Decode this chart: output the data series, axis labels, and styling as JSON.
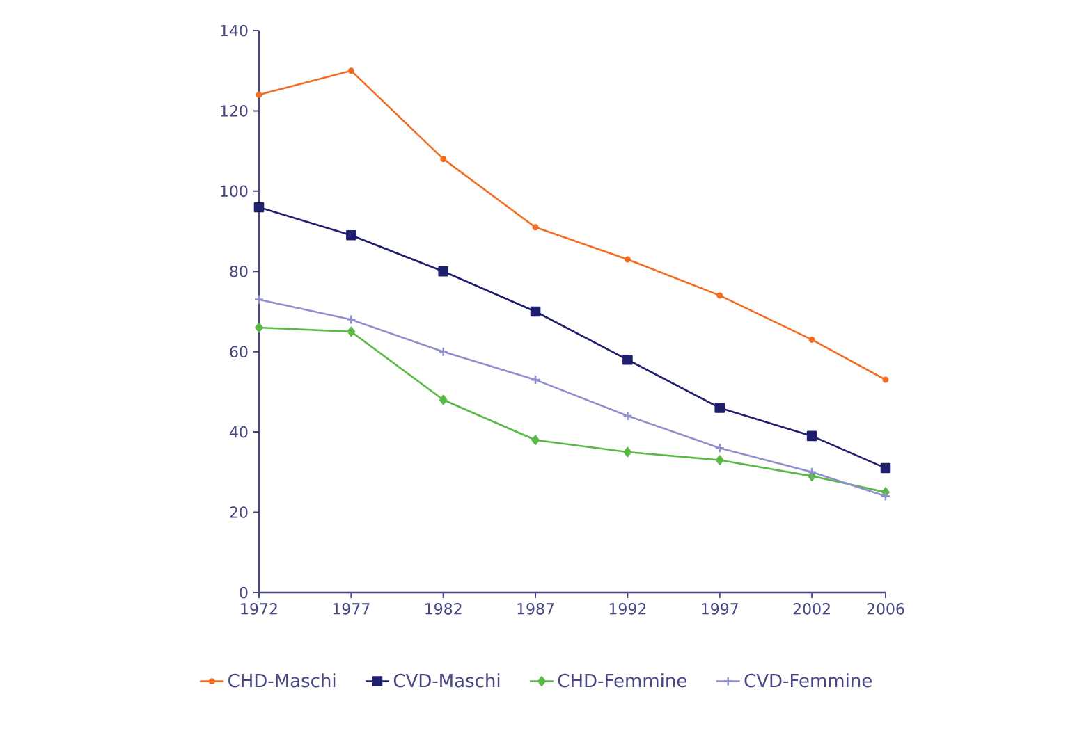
{
  "chart_data": {
    "type": "line",
    "x": [
      1972,
      1977,
      1982,
      1987,
      1992,
      1997,
      2002,
      2006
    ],
    "series": [
      {
        "name": "CHD-Maschi",
        "color": "#f26c22",
        "marker": "circle",
        "values": [
          124,
          130,
          108,
          91,
          83,
          74,
          63,
          53
        ]
      },
      {
        "name": "CVD-Maschi",
        "color": "#1f1f6e",
        "marker": "square",
        "values": [
          96,
          89,
          80,
          70,
          58,
          46,
          39,
          31
        ]
      },
      {
        "name": "CHD-Femmine",
        "color": "#5ab846",
        "marker": "diamond",
        "values": [
          66,
          65,
          48,
          38,
          35,
          33,
          29,
          25
        ]
      },
      {
        "name": "CVD-Femmine",
        "color": "#8f8fcf",
        "marker": "cross",
        "values": [
          73,
          68,
          60,
          53,
          44,
          36,
          30,
          24
        ]
      }
    ],
    "xlim": [
      1972,
      2006
    ],
    "xticks": [
      1972,
      1977,
      1982,
      1987,
      1992,
      1997,
      2002,
      2006
    ],
    "ylim": [
      0,
      140
    ],
    "yticks": [
      0,
      20,
      40,
      60,
      80,
      100,
      120,
      140
    ],
    "grid": false,
    "legend": "bottom",
    "line_style": "solid"
  }
}
